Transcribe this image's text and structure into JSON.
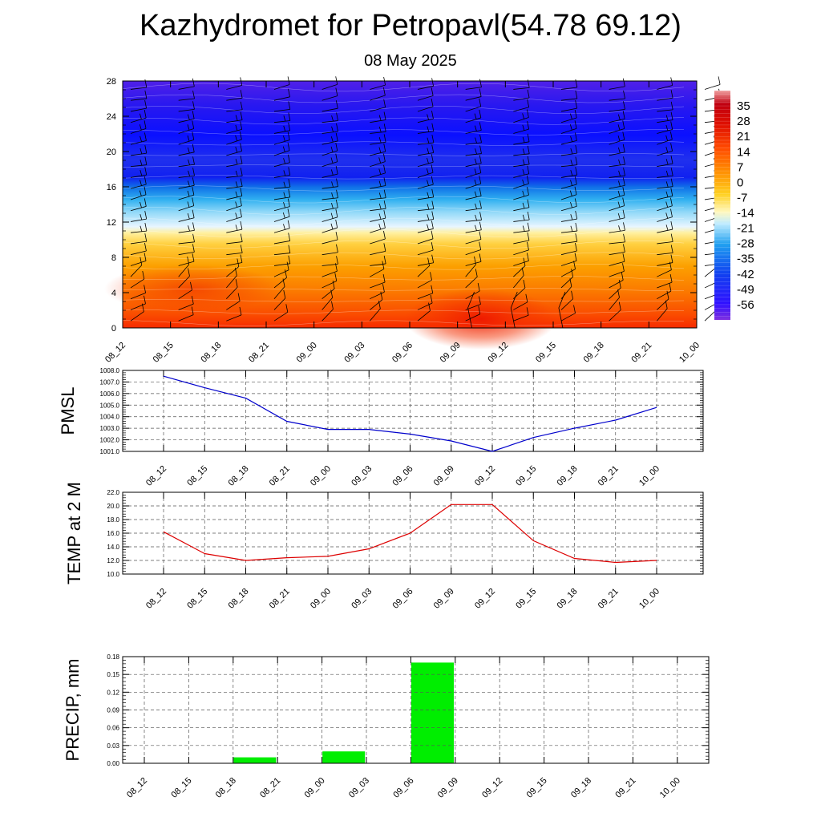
{
  "header": {
    "title": "Kazhydromet for Petropavl(54.78 69.12)",
    "subtitle": "08 May 2025"
  },
  "colors": {
    "pmsl_line": "#0000cc",
    "temp_line": "#dd0000",
    "precip_bar": "#00ee00",
    "wind_barb": "#000000"
  },
  "chart_data": [
    {
      "type": "heatmap",
      "name": "cross-section",
      "title": "",
      "x": [
        "08_12",
        "08_15",
        "08_18",
        "08_21",
        "09_00",
        "09_03",
        "09_06",
        "09_09",
        "09_12",
        "09_15",
        "09_18",
        "09_21",
        "10_00"
      ],
      "y_ticks": [
        "0",
        "4",
        "8",
        "12",
        "16",
        "20",
        "24",
        "28"
      ],
      "ylim": [
        0,
        28
      ],
      "colorbar_labels": [
        "35",
        "28",
        "21",
        "14",
        "7",
        "0",
        "-7",
        "-14",
        "-21",
        "-28",
        "-35",
        "-42",
        "-49",
        "-56"
      ],
      "colorbar_range": [
        -63,
        42
      ],
      "overlay": "wind-barbs"
    },
    {
      "type": "line",
      "ylabel": "PMSL",
      "x": [
        "08_12",
        "08_15",
        "08_18",
        "08_21",
        "09_00",
        "09_03",
        "09_06",
        "09_09",
        "09_12",
        "09_15",
        "09_18",
        "09_21",
        "10_00"
      ],
      "values": [
        1007.5,
        1006.5,
        1005.6,
        1003.6,
        1002.9,
        1002.9,
        1002.5,
        1001.9,
        1001.0,
        1002.2,
        1003.0,
        1003.7,
        1004.8
      ],
      "ylim": [
        1001.0,
        1008.0
      ],
      "y_ticks": [
        "1001.0",
        "1002.0",
        "1003.0",
        "1004.0",
        "1005.0",
        "1006.0",
        "1007.0",
        "1008.0"
      ],
      "grid": true
    },
    {
      "type": "line",
      "ylabel": "TEMP at 2 M",
      "x": [
        "08_12",
        "08_15",
        "08_18",
        "08_21",
        "09_00",
        "09_03",
        "09_06",
        "09_09",
        "09_12",
        "09_15",
        "09_18",
        "09_21",
        "10_00"
      ],
      "values": [
        16.2,
        13.0,
        12.0,
        12.4,
        12.6,
        13.7,
        16.0,
        20.2,
        20.2,
        14.9,
        12.3,
        11.7,
        12.0
      ],
      "ylim": [
        10.0,
        22.0
      ],
      "y_ticks": [
        "10.0",
        "12.0",
        "14.0",
        "16.0",
        "18.0",
        "20.0",
        "22.0"
      ],
      "grid": true
    },
    {
      "type": "bar",
      "ylabel": "PRECIP, mm",
      "categories": [
        "08_12",
        "08_15",
        "08_18",
        "08_21",
        "09_00",
        "09_03",
        "09_06",
        "09_09",
        "09_12",
        "09_15",
        "09_18",
        "09_21",
        "10_00"
      ],
      "values": [
        0,
        0,
        0.01,
        0,
        0.02,
        0,
        0.17,
        0,
        0,
        0,
        0,
        0,
        0
      ],
      "ylim": [
        0,
        0.18
      ],
      "y_ticks": [
        "0.00",
        "0.03",
        "0.06",
        "0.09",
        "0.12",
        "0.15",
        "0.18"
      ],
      "grid": true
    }
  ]
}
